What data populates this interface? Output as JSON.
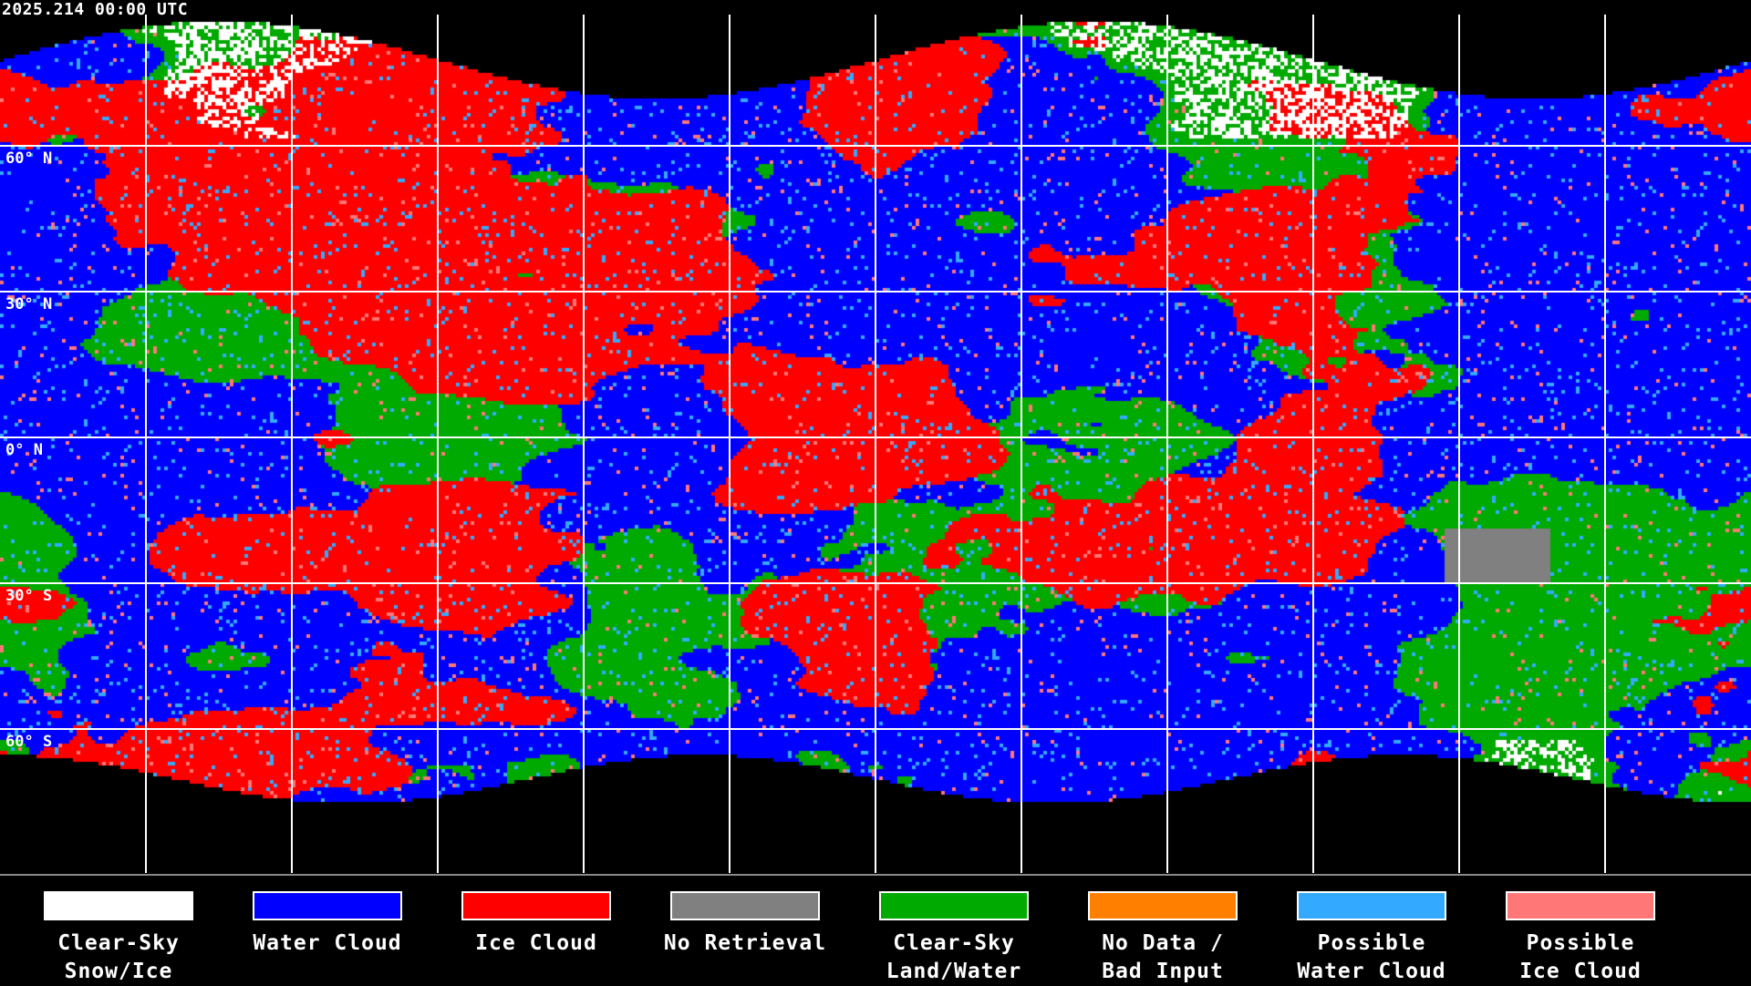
{
  "timestamp": "2025.214 00:00 UTC",
  "latitude_labels": [
    "60° N",
    "30° N",
    "0° N",
    "30° S",
    "60° S"
  ],
  "map": {
    "projection": "equirectangular",
    "graticule_spacing_deg": 30,
    "coastlines": true
  },
  "legend": [
    {
      "line1": "Clear-Sky",
      "line2": "Snow/Ice",
      "color": "#ffffff"
    },
    {
      "line1": "Water Cloud",
      "line2": "",
      "color": "#0000ff"
    },
    {
      "line1": "Ice Cloud",
      "line2": "",
      "color": "#ff0000"
    },
    {
      "line1": "No Retrieval",
      "line2": "",
      "color": "#808080"
    },
    {
      "line1": "Clear-Sky",
      "line2": "Land/Water",
      "color": "#00aa00"
    },
    {
      "line1": "No Data /",
      "line2": "Bad Input",
      "color": "#ff8000"
    },
    {
      "line1": "Possible",
      "line2": "Water Cloud",
      "color": "#33aaff"
    },
    {
      "line1": "Possible",
      "line2": "Ice Cloud",
      "color": "#ff7777"
    }
  ]
}
